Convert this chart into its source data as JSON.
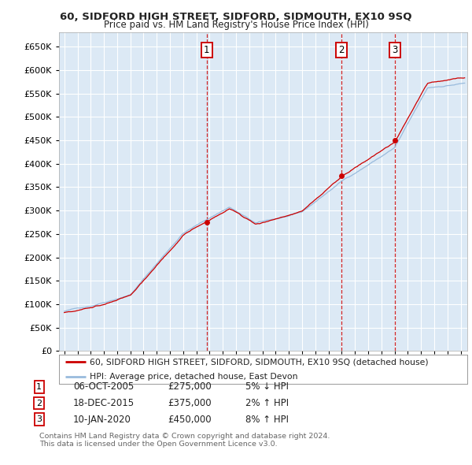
{
  "title": "60, SIDFORD HIGH STREET, SIDFORD, SIDMOUTH, EX10 9SQ",
  "subtitle": "Price paid vs. HM Land Registry's House Price Index (HPI)",
  "ylim": [
    0,
    680000
  ],
  "yticks": [
    0,
    50000,
    100000,
    150000,
    200000,
    250000,
    300000,
    350000,
    400000,
    450000,
    500000,
    550000,
    600000,
    650000
  ],
  "xlim_start": 1994.6,
  "xlim_end": 2025.5,
  "bg_color": "#dce9f5",
  "grid_color": "#ffffff",
  "red_line_color": "#cc0000",
  "blue_line_color": "#99bbdd",
  "transactions": [
    {
      "num": 1,
      "date": "06-OCT-2005",
      "price": 275000,
      "pct": "5%",
      "dir": "↓",
      "x": 2005.77
    },
    {
      "num": 2,
      "date": "18-DEC-2015",
      "price": 375000,
      "pct": "2%",
      "dir": "↑",
      "x": 2015.96
    },
    {
      "num": 3,
      "date": "10-JAN-2020",
      "price": 450000,
      "pct": "8%",
      "dir": "↑",
      "x": 2020.04
    }
  ],
  "legend_line1": "60, SIDFORD HIGH STREET, SIDFORD, SIDMOUTH, EX10 9SQ (detached house)",
  "legend_line2": "HPI: Average price, detached house, East Devon",
  "footer1": "Contains HM Land Registry data © Crown copyright and database right 2024.",
  "footer2": "This data is licensed under the Open Government Licence v3.0."
}
